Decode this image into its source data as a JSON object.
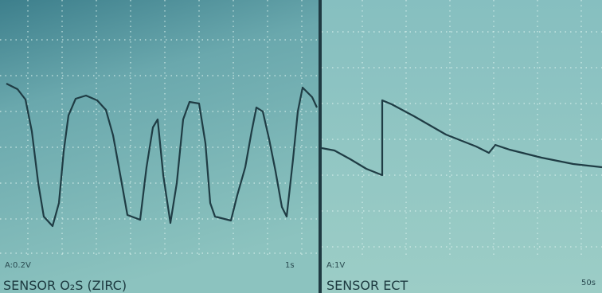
{
  "panels": [
    {
      "scale": "A:0.2V",
      "timebase": "1s",
      "label": "SENSOR O₂S (ZIRC)"
    },
    {
      "scale": "A:1V",
      "timebase": "50s",
      "label": "SENSOR ECT"
    }
  ]
}
